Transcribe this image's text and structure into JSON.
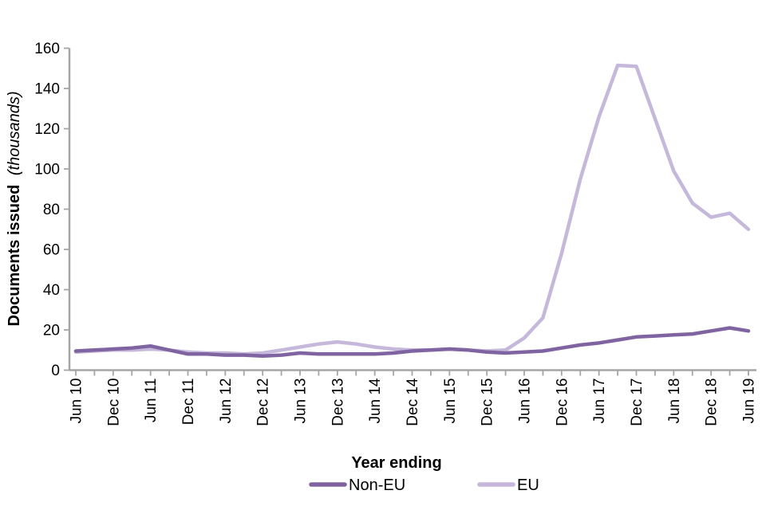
{
  "chart_data": {
    "type": "line",
    "title": "",
    "xlabel": "Year ending",
    "ylabel_bold": "Documents issued",
    "ylabel_italic": "(thousands)",
    "ylim": [
      0,
      160
    ],
    "ytick_step": 20,
    "yticks": [
      0,
      20,
      40,
      60,
      80,
      100,
      120,
      140,
      160
    ],
    "grid": "off",
    "legend_position": "bottom",
    "legend_title": "Year ending",
    "x_tick_interval": "quarterly",
    "x_label_interval": "semi-annual",
    "x_axis_labels_visible": [
      "Jun 10",
      "Dec 10",
      "Jun 11",
      "Dec 11",
      "Jun 12",
      "Dec 12",
      "Jun 13",
      "Dec 13",
      "Jun 14",
      "Dec 14",
      "Jun 15",
      "Dec 15",
      "Jun 16",
      "Dec 16",
      "Jun 17",
      "Dec 17",
      "Jun 18",
      "Dec 18",
      "Jun 19"
    ],
    "x": [
      "Jun 10",
      "Sep 10",
      "Dec 10",
      "Mar 11",
      "Jun 11",
      "Sep 11",
      "Dec 11",
      "Mar 12",
      "Jun 12",
      "Sep 12",
      "Dec 12",
      "Mar 13",
      "Jun 13",
      "Sep 13",
      "Dec 13",
      "Mar 14",
      "Jun 14",
      "Sep 14",
      "Dec 14",
      "Mar 15",
      "Jun 15",
      "Sep 15",
      "Dec 15",
      "Mar 16",
      "Jun 16",
      "Sep 16",
      "Dec 16",
      "Mar 17",
      "Jun 17",
      "Sep 17",
      "Dec 17",
      "Mar 18",
      "Jun 18",
      "Sep 18",
      "Dec 18",
      "Mar 19",
      "Jun 19"
    ],
    "series": [
      {
        "name": "Non-EU",
        "color": "#8064A2",
        "values": [
          9.5,
          10,
          10.5,
          11,
          12,
          10,
          8,
          8,
          7.5,
          7.5,
          7,
          7.5,
          8.5,
          8,
          8,
          8,
          8,
          8.5,
          9.5,
          10,
          10.5,
          10,
          9,
          8.5,
          9,
          9.5,
          11,
          12.5,
          13.5,
          15,
          16.5,
          17,
          17.5,
          18,
          19.5,
          21,
          19.5
        ]
      },
      {
        "name": "EU",
        "color": "#C5B8DA",
        "values": [
          9,
          9.5,
          10,
          10,
          10.5,
          10,
          9,
          8.5,
          8.5,
          8,
          8.5,
          10,
          11.5,
          13,
          14,
          13,
          11.5,
          10.5,
          10,
          10,
          10.5,
          10,
          9.5,
          10,
          16,
          26,
          58,
          95,
          126,
          151.5,
          151,
          125,
          99,
          83,
          76,
          78,
          70
        ]
      }
    ],
    "colors": {
      "axis": "#A6A6A6",
      "text": "#000000",
      "background": "#FFFFFF"
    }
  }
}
